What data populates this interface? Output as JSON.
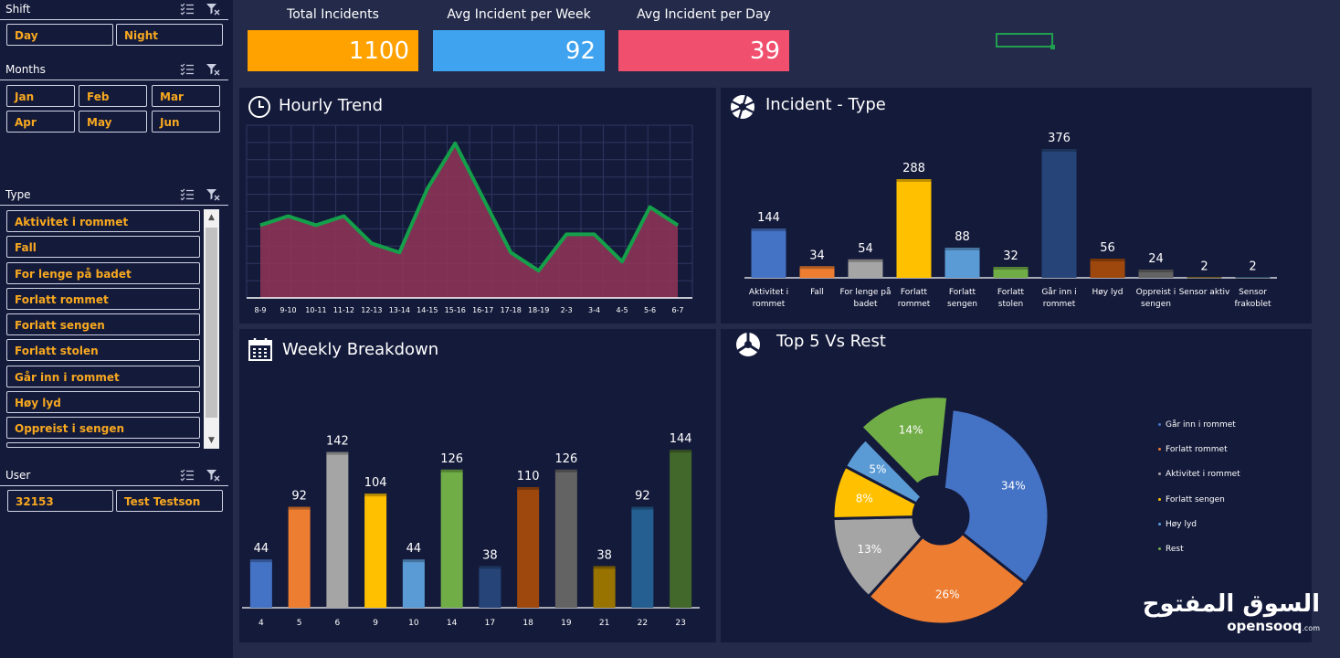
{
  "sidebar": {
    "shift": {
      "title": "Shift",
      "items": [
        "Day",
        "Night"
      ]
    },
    "months": {
      "title": "Months",
      "items": [
        "Jan",
        "Feb",
        "Mar",
        "Apr",
        "May",
        "Jun"
      ]
    },
    "type": {
      "title": "Type",
      "items": [
        "Aktivitet i rommet",
        "Fall",
        "For lenge på badet",
        "Forlatt rommet",
        "Forlatt sengen",
        "Forlatt stolen",
        "Går inn i rommet",
        "Høy lyd",
        "Oppreist i sengen"
      ]
    },
    "user": {
      "title": "User",
      "items": [
        "32153",
        "Test Testson"
      ]
    },
    "icons": [
      "multi-select-icon",
      "clear-filter-icon"
    ],
    "accent_color": "#f7a820"
  },
  "kpis": [
    {
      "label": "Total Incidents",
      "value": "1100",
      "color": "#ffa200"
    },
    {
      "label": "Avg Incident per Week",
      "value": "92",
      "color": "#3fa3ef"
    },
    {
      "label": "Avg Incident per Day",
      "value": "39",
      "color": "#f0506e"
    }
  ],
  "panels": {
    "hourly": {
      "title": "Hourly Trend",
      "icon": "clock-icon"
    },
    "type": {
      "title": "Incident - Type",
      "icon": "aperture-icon"
    },
    "weekly": {
      "title": "Weekly Breakdown",
      "icon": "calendar-icon"
    },
    "top5": {
      "title": "Top 5 Vs Rest",
      "icon": "aperture-icon"
    }
  },
  "chart_data": [
    {
      "id": "hourly",
      "type": "area",
      "categories": [
        "8-9",
        "9-10",
        "10-11",
        "11-12",
        "12-13",
        "13-14",
        "14-15",
        "15-16",
        "16-17",
        "17-18",
        "18-19",
        "2-3",
        "3-4",
        "4-5",
        "5-6",
        "6-7"
      ],
      "values": [
        8,
        9,
        8,
        9,
        6,
        5,
        12,
        17,
        11,
        5,
        3,
        7,
        7,
        4,
        10,
        8
      ],
      "ylim": [
        0,
        19
      ],
      "grid": true,
      "line_color": "#14a04a",
      "fill_color": "#8c3457"
    },
    {
      "id": "type",
      "type": "bar",
      "categories": [
        "Aktivitet i rommet",
        "Fall",
        "For lenge på badet",
        "Forlatt rommet",
        "Forlatt sengen",
        "Forlatt stolen",
        "Går inn i rommet",
        "Høy lyd",
        "Oppreist i sengen",
        "Sensor aktiv",
        "Sensor frakoblet"
      ],
      "values": [
        144,
        34,
        54,
        288,
        88,
        32,
        376,
        56,
        24,
        2,
        2
      ],
      "colors": [
        "#4472c4",
        "#ed7d31",
        "#a5a5a5",
        "#ffc000",
        "#5b9bd5",
        "#70ad47",
        "#264478",
        "#9e480e",
        "#636363",
        "#997300",
        "#255e91"
      ],
      "ylim": [
        0,
        400
      ],
      "data_labels": true
    },
    {
      "id": "weekly",
      "type": "bar",
      "categories": [
        "4",
        "5",
        "6",
        "9",
        "10",
        "14",
        "17",
        "18",
        "19",
        "21",
        "22",
        "23"
      ],
      "values": [
        44,
        92,
        142,
        104,
        44,
        126,
        38,
        110,
        126,
        38,
        92,
        144
      ],
      "colors": [
        "#4472c4",
        "#ed7d31",
        "#a5a5a5",
        "#ffc000",
        "#5b9bd5",
        "#70ad47",
        "#264478",
        "#9e480e",
        "#636363",
        "#997300",
        "#255e91",
        "#43682b"
      ],
      "ylim": [
        0,
        150
      ],
      "data_labels": true
    },
    {
      "id": "top5",
      "type": "pie",
      "donut": true,
      "labels": [
        "Går inn i rommet",
        "Forlatt rommet",
        "Aktivitet i rommet",
        "Forlatt sengen",
        "Høy lyd",
        "Rest"
      ],
      "values": [
        34,
        26,
        13,
        8,
        5,
        14
      ],
      "value_labels": [
        "34%",
        "26%",
        "13%",
        "8%",
        "5%",
        "14%"
      ],
      "colors": [
        "#4472c4",
        "#ed7d31",
        "#a5a5a5",
        "#ffc000",
        "#5b9bd5",
        "#70ad47"
      ],
      "legend": "right"
    }
  ],
  "watermark": {
    "arabic": "السوق المفتوح",
    "name": "opensooq",
    "suffix": ".com"
  }
}
